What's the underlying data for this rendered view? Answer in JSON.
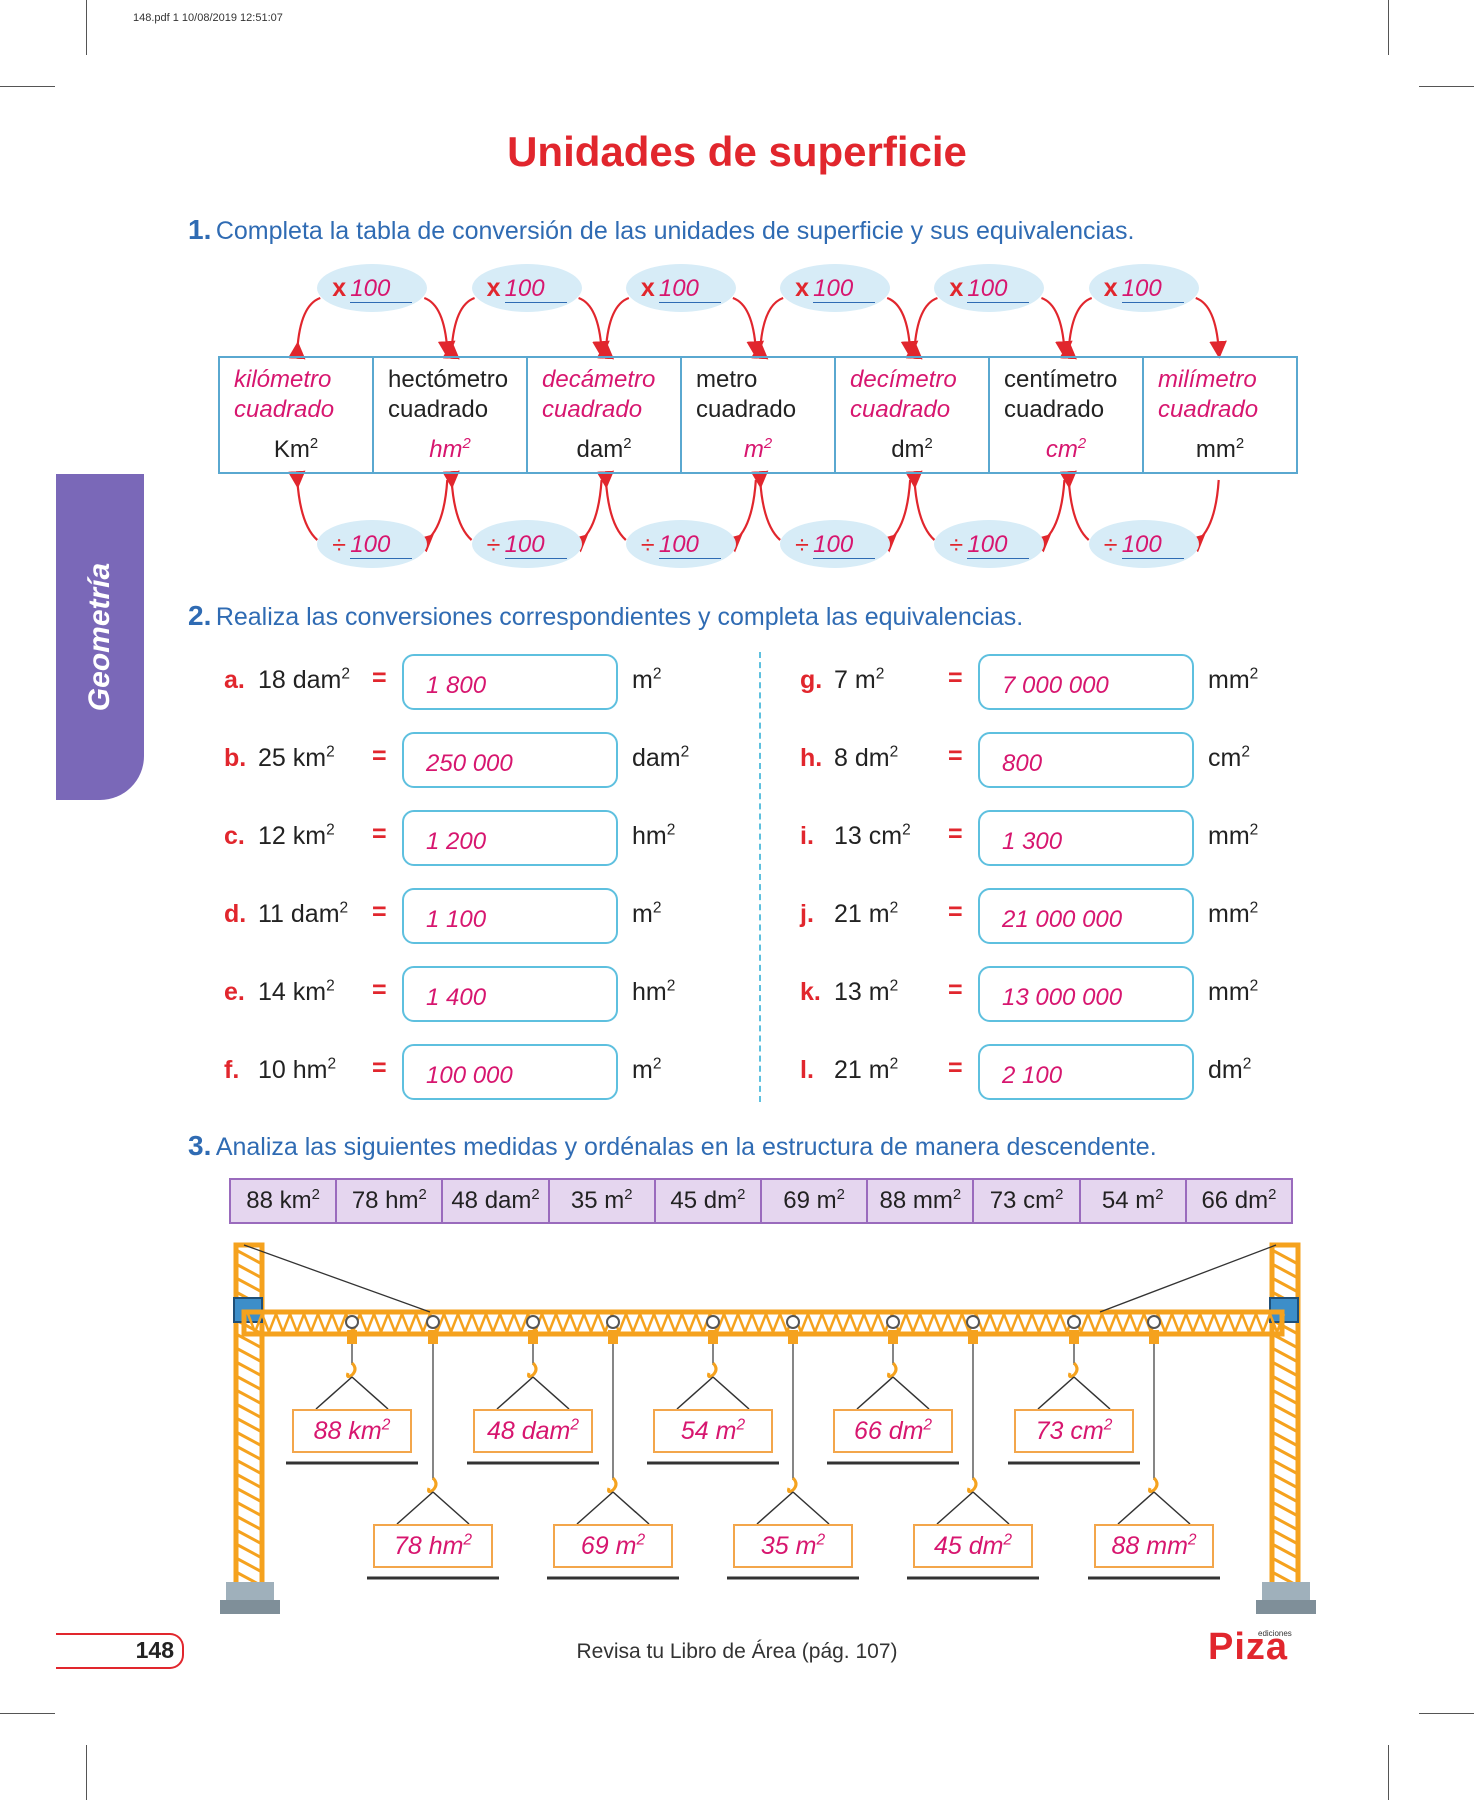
{
  "pdf_header": "148.pdf   1   10/08/2019   12:51:07",
  "title": "Unidades de superficie",
  "side_tab": "Geometría",
  "exercise1": {
    "number": "1.",
    "instruction": "Completa la tabla de conversión de las unidades de superficie y sus equivalencias.",
    "multiply_op": "x",
    "divide_op": "÷",
    "multiply_values": [
      "100",
      "100",
      "100",
      "100",
      "100",
      "100"
    ],
    "divide_values": [
      "100",
      "100",
      "100",
      "100",
      "100",
      "100"
    ],
    "units": [
      {
        "name1": "kilómetro",
        "name2": "cuadrado",
        "symbol": "Km",
        "filled_name": true,
        "filled_symbol": false
      },
      {
        "name1": "hectómetro",
        "name2": "cuadrado",
        "symbol": "hm",
        "filled_name": false,
        "filled_symbol": true
      },
      {
        "name1": "decámetro",
        "name2": "cuadrado",
        "symbol": "dam",
        "filled_name": true,
        "filled_symbol": false
      },
      {
        "name1": "metro",
        "name2": "cuadrado",
        "symbol": "m",
        "filled_name": false,
        "filled_symbol": true
      },
      {
        "name1": "decímetro",
        "name2": "cuadrado",
        "symbol": "dm",
        "filled_name": true,
        "filled_symbol": false
      },
      {
        "name1": "centímetro",
        "name2": "cuadrado",
        "symbol": "cm",
        "filled_name": false,
        "filled_symbol": true
      },
      {
        "name1": "milímetro",
        "name2": "cuadrado",
        "symbol": "mm",
        "filled_name": true,
        "filled_symbol": false
      }
    ],
    "exponent": "2"
  },
  "exercise2": {
    "number": "2.",
    "instruction": "Realiza las conversiones correspondientes y completa las equivalencias.",
    "equals": "=",
    "left": [
      {
        "letter": "a.",
        "value": "18 dam",
        "answer": "1 800",
        "unit": "m"
      },
      {
        "letter": "b.",
        "value": "25 km",
        "answer": "250 000",
        "unit": "dam"
      },
      {
        "letter": "c.",
        "value": "12 km",
        "answer": "1 200",
        "unit": "hm"
      },
      {
        "letter": "d.",
        "value": "11 dam",
        "answer": "1 100",
        "unit": "m"
      },
      {
        "letter": "e.",
        "value": "14 km",
        "answer": "1 400",
        "unit": "hm"
      },
      {
        "letter": "f.",
        "value": "10 hm",
        "answer": "100 000",
        "unit": "m"
      }
    ],
    "right": [
      {
        "letter": "g.",
        "value": "7 m",
        "answer": "7 000 000",
        "unit": "mm"
      },
      {
        "letter": "h.",
        "value": "8 dm",
        "answer": "800",
        "unit": "cm"
      },
      {
        "letter": "i.",
        "value": "13 cm",
        "answer": "1 300",
        "unit": "mm"
      },
      {
        "letter": "j.",
        "value": "21 m",
        "answer": "21 000 000",
        "unit": "mm"
      },
      {
        "letter": "k.",
        "value": "13 m",
        "answer": "13 000 000",
        "unit": "mm"
      },
      {
        "letter": "l.",
        "value": "21 m",
        "answer": "2 100",
        "unit": "dm"
      }
    ]
  },
  "exercise3": {
    "number": "3.",
    "instruction": "Analiza las siguientes medidas y ordénalas en la estructura de manera descendente.",
    "measures": [
      "88 km",
      "78 hm",
      "48 dam",
      "35 m",
      "45 dm",
      "69 m",
      "88 mm",
      "73 cm",
      "54 m",
      "66 dm"
    ],
    "signs": [
      "88 km",
      "78 hm",
      "48 dam",
      "69 m",
      "54 m",
      "35 m",
      "66 dm",
      "45 dm",
      "73 cm",
      "88 mm"
    ]
  },
  "footer": {
    "page_number": "148",
    "text": "Revisa tu Libro de Área (pág. 107)",
    "logo": "Piza",
    "logo_small": "ediciones"
  },
  "colors": {
    "title": "#e1262d",
    "instruction": "#2f6bb3",
    "answer": "#d7166f",
    "box_border": "#5ec0df",
    "tab": "#7a68b8",
    "crane": "#f5a21e"
  }
}
